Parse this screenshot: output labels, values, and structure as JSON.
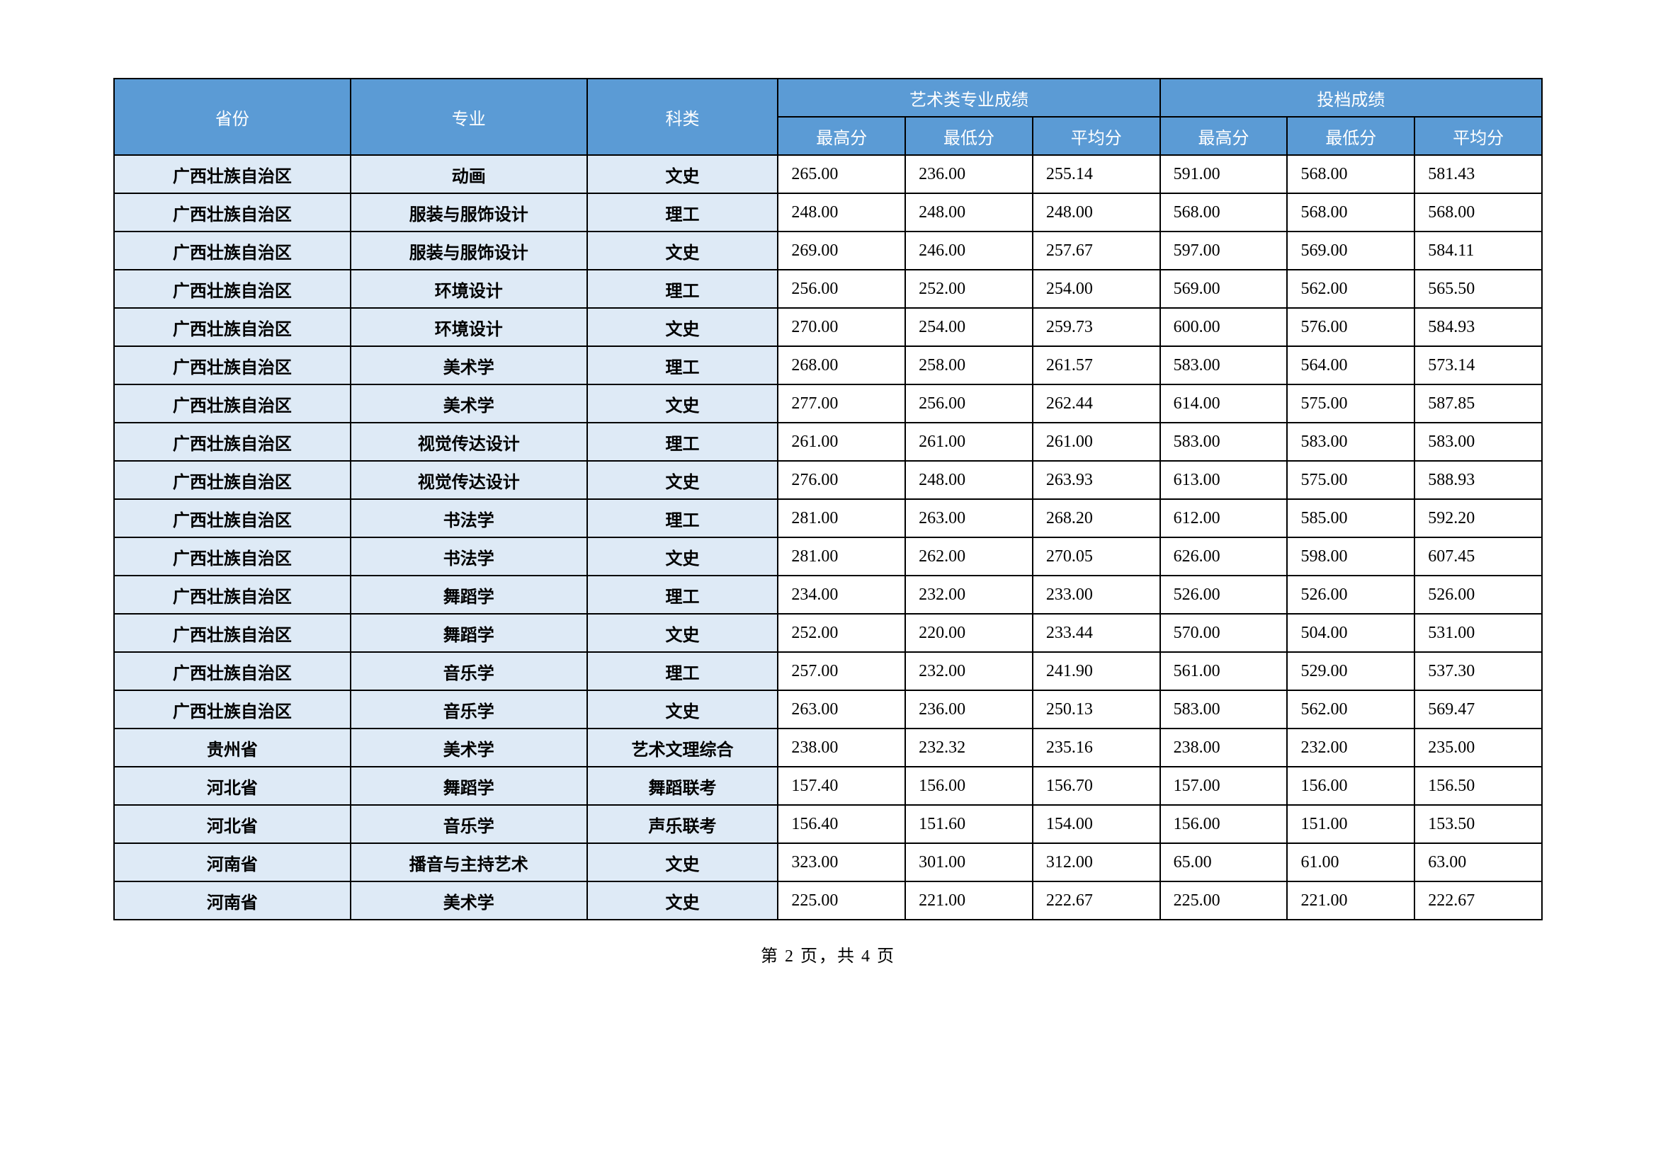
{
  "table": {
    "header_bg": "#5b9bd5",
    "header_fg": "#ffffff",
    "label_bg": "#deeaf6",
    "border_color": "#000000",
    "font_family": "SimSun",
    "font_size_pt": 18,
    "group1_label": "艺术类专业成绩",
    "group2_label": "投档成绩",
    "col_province": "省份",
    "col_major": "专业",
    "col_category": "科类",
    "sub_max": "最高分",
    "sub_min": "最低分",
    "sub_avg": "平均分",
    "rows": [
      {
        "p": "广西壮族自治区",
        "m": "动画",
        "c": "文史",
        "a1": "265.00",
        "a2": "236.00",
        "a3": "255.14",
        "b1": "591.00",
        "b2": "568.00",
        "b3": "581.43"
      },
      {
        "p": "广西壮族自治区",
        "m": "服装与服饰设计",
        "c": "理工",
        "a1": "248.00",
        "a2": "248.00",
        "a3": "248.00",
        "b1": "568.00",
        "b2": "568.00",
        "b3": "568.00"
      },
      {
        "p": "广西壮族自治区",
        "m": "服装与服饰设计",
        "c": "文史",
        "a1": "269.00",
        "a2": "246.00",
        "a3": "257.67",
        "b1": "597.00",
        "b2": "569.00",
        "b3": "584.11"
      },
      {
        "p": "广西壮族自治区",
        "m": "环境设计",
        "c": "理工",
        "a1": "256.00",
        "a2": "252.00",
        "a3": "254.00",
        "b1": "569.00",
        "b2": "562.00",
        "b3": "565.50"
      },
      {
        "p": "广西壮族自治区",
        "m": "环境设计",
        "c": "文史",
        "a1": "270.00",
        "a2": "254.00",
        "a3": "259.73",
        "b1": "600.00",
        "b2": "576.00",
        "b3": "584.93"
      },
      {
        "p": "广西壮族自治区",
        "m": "美术学",
        "c": "理工",
        "a1": "268.00",
        "a2": "258.00",
        "a3": "261.57",
        "b1": "583.00",
        "b2": "564.00",
        "b3": "573.14"
      },
      {
        "p": "广西壮族自治区",
        "m": "美术学",
        "c": "文史",
        "a1": "277.00",
        "a2": "256.00",
        "a3": "262.44",
        "b1": "614.00",
        "b2": "575.00",
        "b3": "587.85"
      },
      {
        "p": "广西壮族自治区",
        "m": "视觉传达设计",
        "c": "理工",
        "a1": "261.00",
        "a2": "261.00",
        "a3": "261.00",
        "b1": "583.00",
        "b2": "583.00",
        "b3": "583.00"
      },
      {
        "p": "广西壮族自治区",
        "m": "视觉传达设计",
        "c": "文史",
        "a1": "276.00",
        "a2": "248.00",
        "a3": "263.93",
        "b1": "613.00",
        "b2": "575.00",
        "b3": "588.93"
      },
      {
        "p": "广西壮族自治区",
        "m": "书法学",
        "c": "理工",
        "a1": "281.00",
        "a2": "263.00",
        "a3": "268.20",
        "b1": "612.00",
        "b2": "585.00",
        "b3": "592.20"
      },
      {
        "p": "广西壮族自治区",
        "m": "书法学",
        "c": "文史",
        "a1": "281.00",
        "a2": "262.00",
        "a3": "270.05",
        "b1": "626.00",
        "b2": "598.00",
        "b3": "607.45"
      },
      {
        "p": "广西壮族自治区",
        "m": "舞蹈学",
        "c": "理工",
        "a1": "234.00",
        "a2": "232.00",
        "a3": "233.00",
        "b1": "526.00",
        "b2": "526.00",
        "b3": "526.00"
      },
      {
        "p": "广西壮族自治区",
        "m": "舞蹈学",
        "c": "文史",
        "a1": "252.00",
        "a2": "220.00",
        "a3": "233.44",
        "b1": "570.00",
        "b2": "504.00",
        "b3": "531.00"
      },
      {
        "p": "广西壮族自治区",
        "m": "音乐学",
        "c": "理工",
        "a1": "257.00",
        "a2": "232.00",
        "a3": "241.90",
        "b1": "561.00",
        "b2": "529.00",
        "b3": "537.30"
      },
      {
        "p": "广西壮族自治区",
        "m": "音乐学",
        "c": "文史",
        "a1": "263.00",
        "a2": "236.00",
        "a3": "250.13",
        "b1": "583.00",
        "b2": "562.00",
        "b3": "569.47"
      },
      {
        "p": "贵州省",
        "m": "美术学",
        "c": "艺术文理综合",
        "a1": "238.00",
        "a2": "232.32",
        "a3": "235.16",
        "b1": "238.00",
        "b2": "232.00",
        "b3": "235.00"
      },
      {
        "p": "河北省",
        "m": "舞蹈学",
        "c": "舞蹈联考",
        "a1": "157.40",
        "a2": "156.00",
        "a3": "156.70",
        "b1": "157.00",
        "b2": "156.00",
        "b3": "156.50"
      },
      {
        "p": "河北省",
        "m": "音乐学",
        "c": "声乐联考",
        "a1": "156.40",
        "a2": "151.60",
        "a3": "154.00",
        "b1": "156.00",
        "b2": "151.00",
        "b3": "153.50"
      },
      {
        "p": "河南省",
        "m": "播音与主持艺术",
        "c": "文史",
        "a1": "323.00",
        "a2": "301.00",
        "a3": "312.00",
        "b1": "65.00",
        "b2": "61.00",
        "b3": "63.00"
      },
      {
        "p": "河南省",
        "m": "美术学",
        "c": "文史",
        "a1": "225.00",
        "a2": "221.00",
        "a3": "222.67",
        "b1": "225.00",
        "b2": "221.00",
        "b3": "222.67"
      }
    ]
  },
  "footer": {
    "text": "第 2 页，共 4 页"
  }
}
